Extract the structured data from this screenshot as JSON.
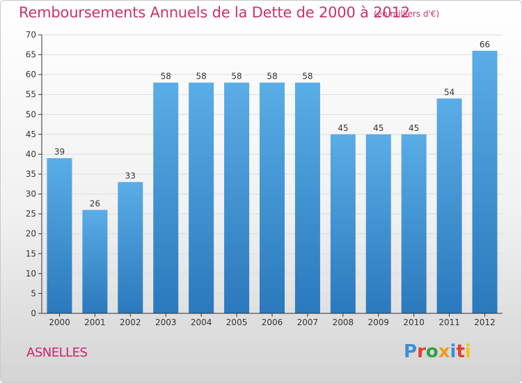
{
  "header": {
    "title": "Remboursements Annuels de la Dette de 2000 à 2012",
    "unit": "(en milliers d'€)"
  },
  "footer": {
    "commune": "ASNELLES",
    "logo": {
      "letters": [
        "P",
        "r",
        "o",
        "x",
        "i",
        "t",
        "i"
      ],
      "colors": [
        "#3a8fd8",
        "#e0402a",
        "#2fa24a",
        "#f39a1e",
        "#3a8fd8",
        "#e0402a",
        "#f2c21c"
      ]
    }
  },
  "colors": {
    "bar_light": "#5aade6",
    "bar_dark": "#2a79bd",
    "axis": "#333333",
    "grid": "#dddddd"
  },
  "chart_data": {
    "type": "bar",
    "categories": [
      "2000",
      "2001",
      "2002",
      "2003",
      "2004",
      "2005",
      "2006",
      "2007",
      "2008",
      "2009",
      "2010",
      "2011",
      "2012"
    ],
    "values": [
      39,
      26,
      33,
      58,
      58,
      58,
      58,
      58,
      45,
      45,
      45,
      54,
      66
    ],
    "ylim": [
      0,
      70
    ],
    "yticks": [
      0,
      5,
      10,
      15,
      20,
      25,
      30,
      35,
      40,
      45,
      50,
      55,
      60,
      65,
      70
    ],
    "title": "Remboursements Annuels de la Dette de 2000 à 2012",
    "xlabel": "",
    "ylabel": "",
    "grid": true
  }
}
